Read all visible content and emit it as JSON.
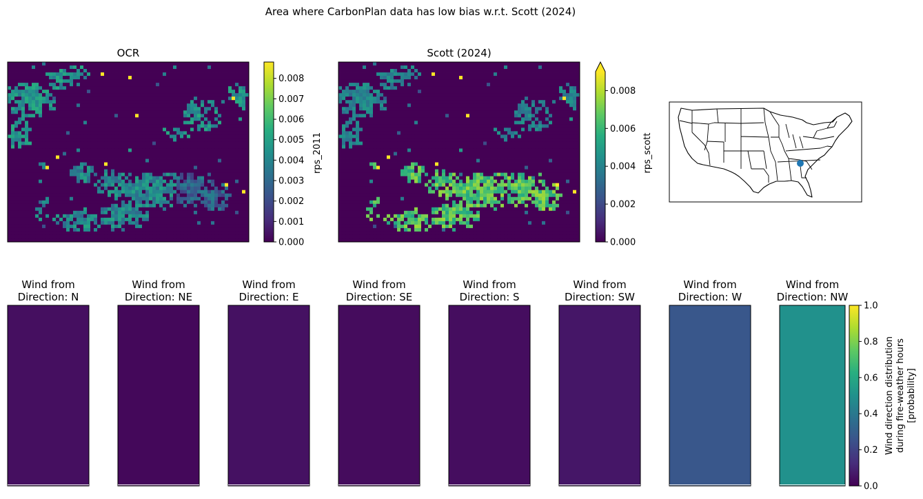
{
  "figure": {
    "suptitle": "Area where CarbonPlan data has low bias w.r.t. Scott (2024)"
  },
  "colormap": {
    "name": "viridis",
    "stops": [
      "#440154",
      "#472d7b",
      "#3b528b",
      "#2c728e",
      "#21918c",
      "#28ae80",
      "#5ec962",
      "#addc30",
      "#fde725"
    ]
  },
  "chart_data": [
    {
      "type": "heatmap",
      "id": "ocr",
      "title": "OCR",
      "colorbar_label": "rps_2011",
      "vmin": 0.0,
      "vmax": 0.0088,
      "ticks": [
        "0.000",
        "0.001",
        "0.002",
        "0.003",
        "0.004",
        "0.005",
        "0.006",
        "0.007",
        "0.008"
      ],
      "extend_max": false
    },
    {
      "type": "heatmap",
      "id": "scott",
      "title": "Scott (2024)",
      "colorbar_label": "rps_scott",
      "vmin": 0.0,
      "vmax": 0.009,
      "ticks": [
        "0.000",
        "0.002",
        "0.004",
        "0.006",
        "0.008"
      ],
      "extend_max": true
    },
    {
      "type": "map",
      "id": "locator",
      "region": "Contiguous United States",
      "point": {
        "lon": -85.0,
        "lat": 33.7
      },
      "point_color": "#1f77b4"
    },
    {
      "type": "heatmap",
      "id": "wind",
      "title_prefix": "Wind from",
      "directions": [
        {
          "label": "Direction: N",
          "value": 0.04
        },
        {
          "label": "Direction: NE",
          "value": 0.02
        },
        {
          "label": "Direction: E",
          "value": 0.045
        },
        {
          "label": "Direction: SE",
          "value": 0.03
        },
        {
          "label": "Direction: S",
          "value": 0.035
        },
        {
          "label": "Direction: SW",
          "value": 0.06
        },
        {
          "label": "Direction: W",
          "value": 0.27
        },
        {
          "label": "Direction: NW",
          "value": 0.5
        }
      ],
      "vmin": 0.0,
      "vmax": 1.0,
      "ticks": [
        "0.0",
        "0.2",
        "0.4",
        "0.6",
        "0.8",
        "1.0"
      ],
      "colorbar_label_lines": [
        "Wind direction distribution",
        "during fire-weather hours",
        "[probability]"
      ]
    }
  ]
}
